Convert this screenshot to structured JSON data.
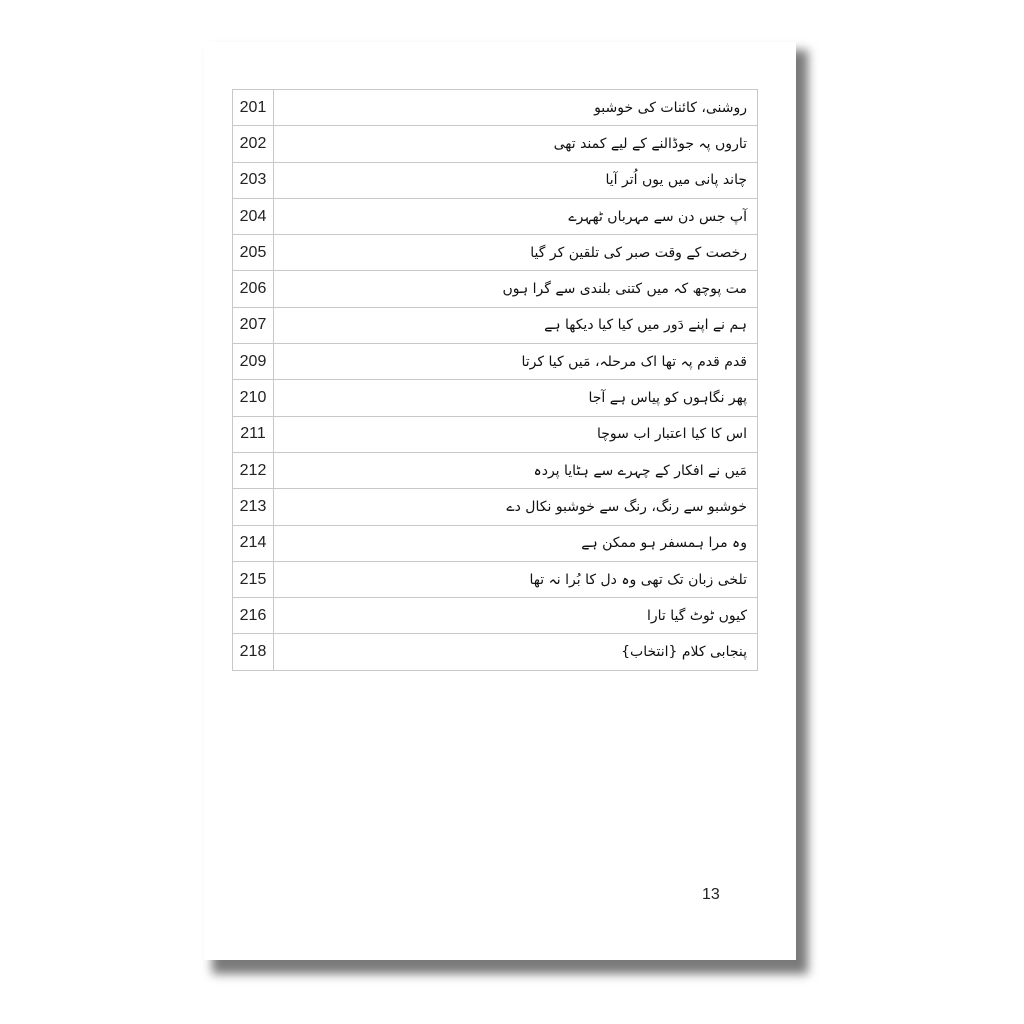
{
  "toc": [
    {
      "page": "201",
      "title": "روشنی، کائنات کی خوشبو"
    },
    {
      "page": "202",
      "title": "تاروں پہ جوڈالنے کے لیے کمند تھی"
    },
    {
      "page": "203",
      "title": "چاند پانی میں یوں اُتر آیا"
    },
    {
      "page": "204",
      "title": "آپ جس دن سے مہرباں ٹھہرے"
    },
    {
      "page": "205",
      "title": "رخصت کے وقت صبر کی تلقین کر گیا"
    },
    {
      "page": "206",
      "title": "مت پوچھ کہ میں کتنی بلندی سے گرا ہوں"
    },
    {
      "page": "207",
      "title": "ہم نے اپنے دَور میں کیا کیا دیکھا ہے"
    },
    {
      "page": "209",
      "title": "قدم قدم پہ تھا اک مرحلہ، مَیں کیا کرتا"
    },
    {
      "page": "210",
      "title": "پھر نگاہوں کو پیاس ہے آجا"
    },
    {
      "page": "211",
      "title": "اس کا کیا اعتبار اب سوچا"
    },
    {
      "page": "212",
      "title": "مَیں نے افکار کے چہرے سے ہٹایا پردہ"
    },
    {
      "page": "213",
      "title": "خوشبو سے رنگ، رنگ سے خوشبو نکال دے"
    },
    {
      "page": "214",
      "title": "وہ مرا ہمسفر ہو ممکن ہے"
    },
    {
      "page": "215",
      "title": "تلخی زبان تک تھی وہ دل کا بُرا نہ تھا"
    },
    {
      "page": "216",
      "title": "کیوں ٹوٹ گیا تارا"
    },
    {
      "page": "218",
      "title": "پنجابی کلام {انتخاب}"
    }
  ],
  "page_number": "13"
}
